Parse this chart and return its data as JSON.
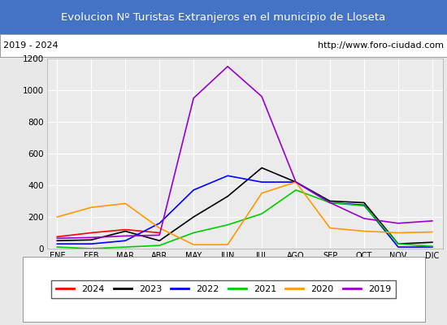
{
  "title": "Evolucion Nº Turistas Extranjeros en el municipio de Lloseta",
  "title_color": "#ffffff",
  "title_bg_color": "#4472c4",
  "subtitle_left": "2019 - 2024",
  "subtitle_right": "http://www.foro-ciudad.com",
  "months": [
    "ENE",
    "FEB",
    "MAR",
    "ABR",
    "MAY",
    "JUN",
    "JUL",
    "AGO",
    "SEP",
    "OCT",
    "NOV",
    "DIC"
  ],
  "ylim": [
    0,
    1200
  ],
  "yticks": [
    0,
    200,
    400,
    600,
    800,
    1000,
    1200
  ],
  "series": {
    "2024": {
      "color": "#ff0000",
      "values": [
        75,
        100,
        120,
        100,
        null,
        null,
        null,
        null,
        null,
        null,
        null,
        null
      ]
    },
    "2023": {
      "color": "#000000",
      "values": [
        50,
        55,
        110,
        50,
        200,
        330,
        510,
        420,
        300,
        290,
        30,
        40
      ]
    },
    "2022": {
      "color": "#0000ff",
      "values": [
        30,
        30,
        50,
        160,
        370,
        460,
        420,
        420,
        290,
        275,
        10,
        10
      ]
    },
    "2021": {
      "color": "#00cc00",
      "values": [
        10,
        0,
        10,
        20,
        100,
        150,
        220,
        370,
        290,
        270,
        30,
        15
      ]
    },
    "2020": {
      "color": "#ff9900",
      "values": [
        200,
        260,
        285,
        130,
        25,
        25,
        350,
        420,
        130,
        110,
        100,
        105
      ]
    },
    "2019": {
      "color": "#9900cc",
      "values": [
        65,
        70,
        80,
        85,
        950,
        1150,
        960,
        420,
        290,
        190,
        160,
        175
      ]
    }
  },
  "legend_order": [
    "2024",
    "2023",
    "2022",
    "2021",
    "2020",
    "2019"
  ],
  "bg_color": "#e8e8e8",
  "plot_bg_color": "#ebebeb",
  "grid_color": "#ffffff",
  "subtitle_bg_color": "#ffffff",
  "subtitle_border_color": "#999999"
}
